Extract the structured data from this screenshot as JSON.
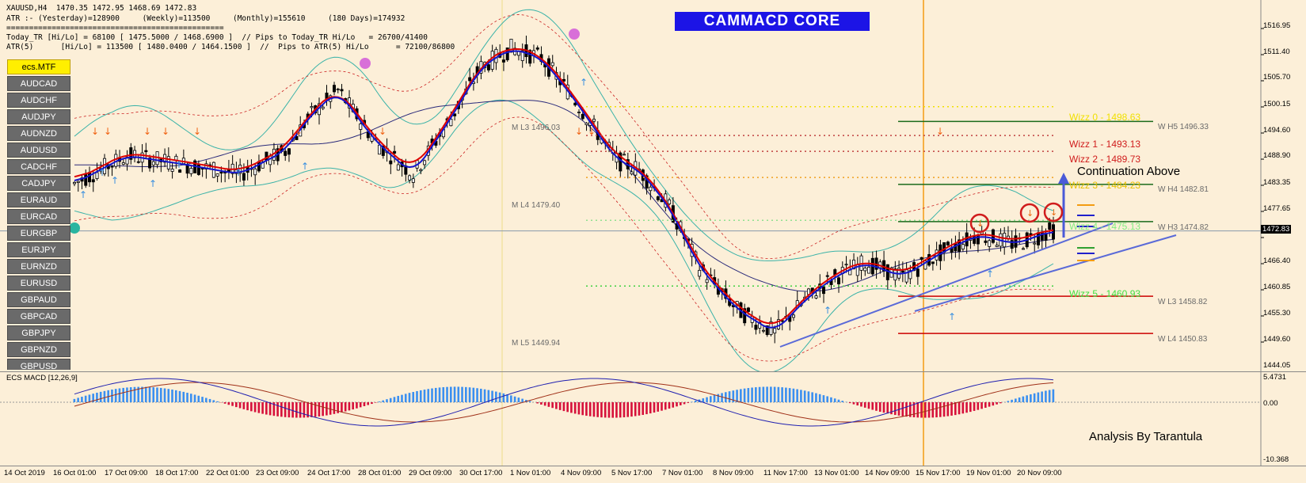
{
  "header": {
    "symbol_line": "XAUUSD,H4  1470.35 1472.95 1468.69 1472.83",
    "atr_line": "ATR :- (Yesterday)=128900     (Weekly)=113500     (Monthly)=155610     (180 Days)=174932",
    "separator": "================================================",
    "today_tr_line": "Today_TR [Hi/Lo] = 68100 [ 1475.5000 / 1468.6900 ]  // Pips to Today_TR Hi/Lo   = 26700/41400",
    "atr5_line": "ATR(5)      [Hi/Lo] = 113500 [ 1480.0400 / 1464.1500 ]  //  Pips to ATR(5) Hi/Lo      = 72100/86800"
  },
  "brand": "CAMMACD CORE",
  "symbols": {
    "active": "ecs.MTF",
    "items": [
      "AUDCAD",
      "AUDCHF",
      "AUDJPY",
      "AUDNZD",
      "AUDUSD",
      "CADCHF",
      "CADJPY",
      "EURAUD",
      "EURCAD",
      "EURGBP",
      "EURJPY",
      "EURNZD",
      "EURUSD",
      "GBPAUD",
      "GBPCAD",
      "GBPJPY",
      "GBPNZD",
      "GBPUSD"
    ]
  },
  "levels": {
    "m_l3": "M  L3 1496.03",
    "m_l4": "M  L4 1479.40",
    "m_l5": "M  L5 1449.94",
    "w_h5": "W  H5 1496.33",
    "w_h4": "W  H4 1482.81",
    "w_h3": "W  H3 1474.82",
    "w_l3": "W  L3 1458.82",
    "w_l4": "W  L4 1450.83"
  },
  "wizz": {
    "w0": "Wizz 0 - 1498.63",
    "w1": "Wizz 1 - 1493.13",
    "w2": "Wizz 2 - 1489.73",
    "w3": "Wizz 3 - 1484.23",
    "w4": "Wizz 4 - 1475.13",
    "w5": "Wizz 5 - 1460.93"
  },
  "colors": {
    "wizz0": "#f0e000",
    "wizz1": "#d01c1c",
    "wizz2": "#d01c1c",
    "wizz3": "#e8c000",
    "wizz4": "#80ee80",
    "wizz5": "#40e040",
    "ema_fast": "#1414cc",
    "ema_slow": "#dd0000",
    "bull": "#ffffff",
    "bear": "#000000",
    "macd_pos": "#3a8ff0",
    "macd_neg": "#d6103a"
  },
  "annotations": {
    "continuation": "Continuation Above",
    "analysis": "Analysis By Tarantula"
  },
  "price_axis": {
    "current": "1472.83",
    "ticks": [
      "1516.95",
      "1511.40",
      "1505.70",
      "1500.15",
      "1494.60",
      "1488.90",
      "1483.35",
      "1477.65",
      "1466.40",
      "1460.85",
      "1455.30",
      "1449.60",
      "1444.05"
    ]
  },
  "macd": {
    "title": "ECS MACD [12,26,9]",
    "ticks": [
      "5.4731",
      "0.00",
      "-10.368"
    ]
  },
  "time_axis": [
    "14 Oct 2019",
    "16 Oct 01:00",
    "17 Oct 09:00",
    "18 Oct 17:00",
    "22 Oct 01:00",
    "23 Oct 09:00",
    "24 Oct 17:00",
    "28 Oct 01:00",
    "29 Oct 09:00",
    "30 Oct 17:00",
    "1 Nov 01:00",
    "4 Nov 09:00",
    "5 Nov 17:00",
    "7 Nov 01:00",
    "8 Nov 09:00",
    "11 Nov 17:00",
    "13 Nov 01:00",
    "14 Nov 09:00",
    "15 Nov 17:00",
    "19 Nov 01:00",
    "20 Nov 09:00"
  ]
}
